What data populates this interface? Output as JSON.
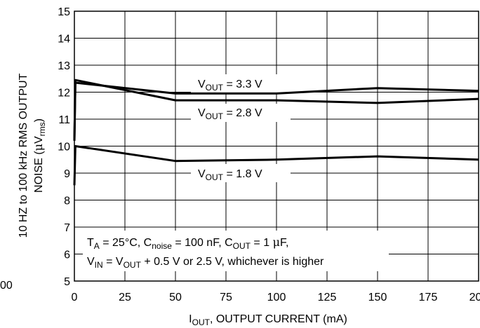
{
  "chart_data": {
    "type": "line",
    "title": "",
    "xlabel": {
      "main": "I",
      "sub": "OUT",
      "rest": ", OUTPUT CURRENT (mA)"
    },
    "ylabel": {
      "line1": "10 HZ to 100 kHz RMS OUTPUT",
      "line2_pre": "NOISE (",
      "line2_mu": "μ",
      "line2_v": "V",
      "line2_sub": "rms",
      "line2_post": ")"
    },
    "xlim": [
      0,
      200
    ],
    "ylim": [
      5,
      15
    ],
    "grid": true,
    "x_ticks": [
      "0",
      "25",
      "50",
      "75",
      "100",
      "125",
      "150",
      "175",
      "200"
    ],
    "y_ticks": [
      "5",
      "6",
      "7",
      "8",
      "9",
      "10",
      "11",
      "12",
      "13",
      "14",
      "15"
    ],
    "left_clipped_label": "00",
    "series": [
      {
        "name": "V_OUT = 3.3 V",
        "label": {
          "main": "V",
          "sub": "OUT",
          "rest": " = 3.3 V"
        },
        "x": [
          0,
          0.5,
          50,
          100,
          150,
          200
        ],
        "y": [
          10.2,
          12.35,
          11.95,
          11.95,
          12.15,
          12.05
        ]
      },
      {
        "name": "V_OUT = 2.8 V",
        "label": {
          "main": "V",
          "sub": "OUT",
          "rest": " = 2.8 V"
        },
        "x": [
          0,
          0.5,
          50,
          100,
          150,
          200
        ],
        "y": [
          10.2,
          12.45,
          11.7,
          11.7,
          11.6,
          11.75
        ]
      },
      {
        "name": "V_OUT = 1.8 V",
        "label": {
          "main": "V",
          "sub": "OUT",
          "rest": " = 1.8 V"
        },
        "x": [
          0,
          0.5,
          50,
          100,
          150,
          200
        ],
        "y": [
          8.55,
          10.0,
          9.45,
          9.5,
          9.62,
          9.5
        ]
      }
    ],
    "conditions": {
      "line1": {
        "ta": "T",
        "ta_sub": "A",
        "ta_val": " = 25°C, C",
        "cn_sub": "noise",
        "cn_val": " = 100 nF, C",
        "co_sub": "OUT",
        "co_val": " = 1 ",
        "mu": "μ",
        "unit": "F,"
      },
      "line2": {
        "vin": "V",
        "vin_sub": "IN",
        "eq": " = V",
        "vout_sub": "OUT",
        "rest": " + 0.5 V or 2.5 V, whichever is higher"
      }
    }
  }
}
